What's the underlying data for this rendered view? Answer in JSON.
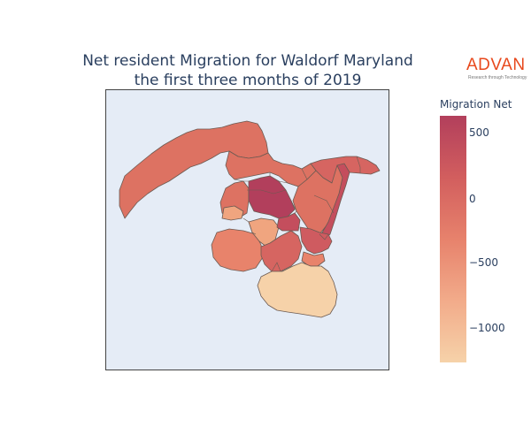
{
  "title": {
    "line1": "Net resident Migration for Waldorf Maryland",
    "line2": "the first three months of 2019"
  },
  "logo": {
    "word": "ADVAN",
    "tagline": "Research through Technology",
    "color": "#e8491d"
  },
  "colorbar": {
    "title": "Migration Net",
    "ticks": [
      "500",
      "0",
      "−500",
      "−1000"
    ],
    "colorscale": [
      "#f6d2a9",
      "#f2ab8a",
      "#e7826c",
      "#d25e5e",
      "#b23f5c"
    ]
  },
  "map": {
    "background": "#e5ecf6",
    "region_colors": {
      "very_high": "#b23f5c",
      "high": "#c44e5d",
      "mid_high": "#cf5b60",
      "mid": "#d66561",
      "mid_low": "#dd7262",
      "low": "#e8836b",
      "lower": "#f0a57f",
      "lowest": "#f6d2a9"
    }
  }
}
